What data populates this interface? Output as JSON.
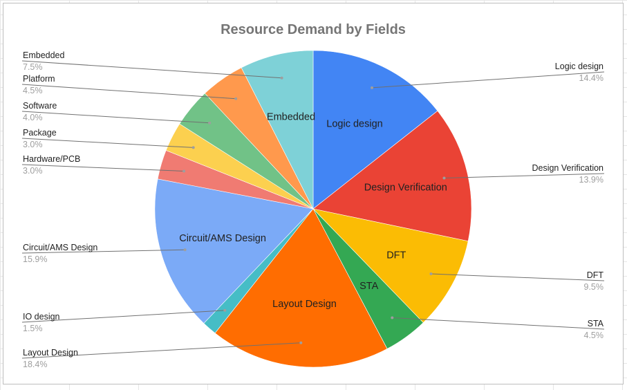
{
  "chart_data": {
    "type": "pie",
    "title": "Resource Demand by Fields",
    "legend": "none",
    "labels": "leader-lines",
    "slices": [
      {
        "name": "Logic design",
        "value": 14.4,
        "pct_label": "14.4%",
        "color": "#4285f4",
        "inside": "Logic design"
      },
      {
        "name": "Design Verification",
        "value": 13.9,
        "pct_label": "13.9%",
        "color": "#ea4335",
        "inside": "Design Verification"
      },
      {
        "name": "DFT",
        "value": 9.5,
        "pct_label": "9.5%",
        "color": "#fbbc04",
        "inside": "DFT"
      },
      {
        "name": "STA",
        "value": 4.5,
        "pct_label": "4.5%",
        "color": "#34a853",
        "inside": "STA"
      },
      {
        "name": "Layout Design",
        "value": 18.4,
        "pct_label": "18.4%",
        "color": "#ff6d01",
        "inside": "Layout Design"
      },
      {
        "name": "IO design",
        "value": 1.5,
        "pct_label": "1.5%",
        "color": "#46bdc6",
        "inside": ""
      },
      {
        "name": "Circuit/AMS Design",
        "value": 15.9,
        "pct_label": "15.9%",
        "color": "#7baaf7",
        "inside": "Circuit/AMS Design"
      },
      {
        "name": "Hardware/PCB",
        "value": 3.0,
        "pct_label": "3.0%",
        "color": "#f07b72",
        "inside": ""
      },
      {
        "name": "Package",
        "value": 3.0,
        "pct_label": "3.0%",
        "color": "#fcd04f",
        "inside": ""
      },
      {
        "name": "Software",
        "value": 4.0,
        "pct_label": "4.0%",
        "color": "#71c287",
        "inside": ""
      },
      {
        "name": "Platform",
        "value": 4.5,
        "pct_label": "4.5%",
        "color": "#ff994d",
        "inside": ""
      },
      {
        "name": "Embedded",
        "value": 7.5,
        "pct_label": "7.5%",
        "color": "#7ed1d7",
        "inside": "Embedded"
      }
    ]
  }
}
